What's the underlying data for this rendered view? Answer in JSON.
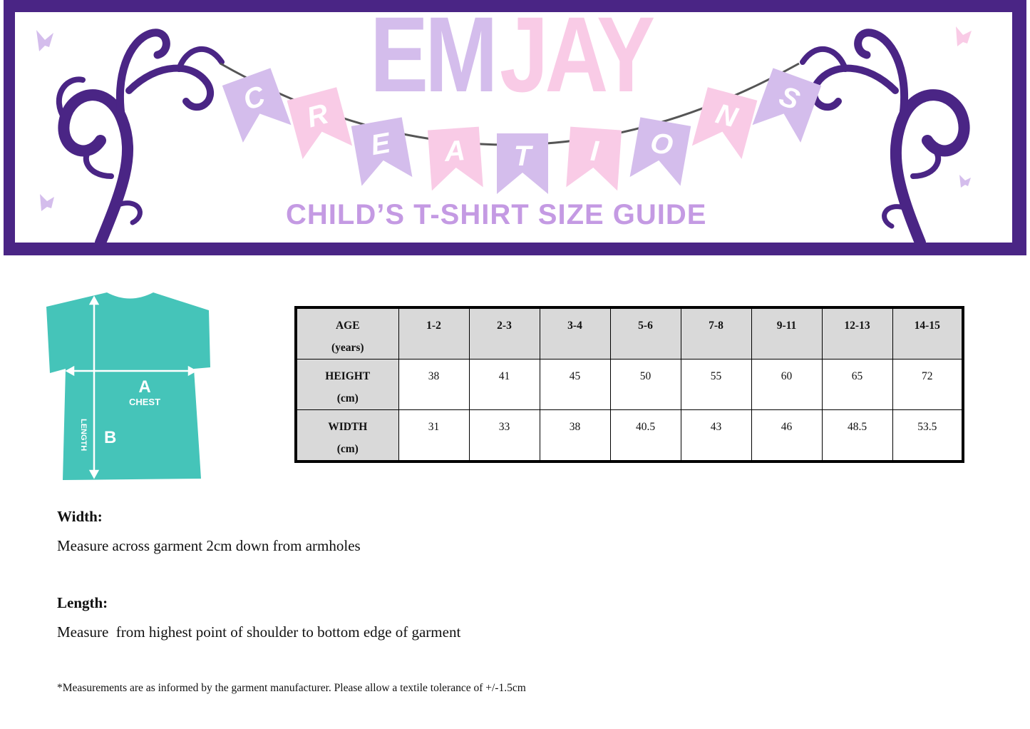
{
  "banner": {
    "brand_part1": "EM",
    "brand_part2": "JAY",
    "bunting_letters": [
      "C",
      "R",
      "E",
      "A",
      "T",
      "I",
      "O",
      "N",
      "S"
    ],
    "subtitle": "CHILD’S T-SHIRT SIZE GUIDE",
    "colors": {
      "border": "#4a2585",
      "lavender": "#d4bdec",
      "pink": "#f9cbe6",
      "subtitle": "#c49ae3"
    }
  },
  "shirt": {
    "label_a": "A",
    "label_chest": "CHEST",
    "label_b": "B",
    "label_length": "LENGTH",
    "color": "#45c4b9"
  },
  "table": {
    "rows": [
      {
        "head": [
          "AGE",
          "(years)"
        ],
        "cells": [
          "1-2",
          "2-3",
          "3-4",
          "5-6",
          "7-8",
          "9-11",
          "12-13",
          "14-15"
        ]
      },
      {
        "head": [
          "HEIGHT",
          "(cm)"
        ],
        "cells": [
          "38",
          "41",
          "45",
          "50",
          "55",
          "60",
          "65",
          "72"
        ]
      },
      {
        "head": [
          "WIDTH",
          "(cm)"
        ],
        "cells": [
          "31",
          "33",
          "38",
          "40.5",
          "43",
          "46",
          "48.5",
          "53.5"
        ]
      }
    ]
  },
  "notes": {
    "width_heading": "Width:",
    "width_text": "Measure across garment 2cm down from armholes",
    "length_heading": "Length:",
    "length_text": "Measure  from highest point of shoulder to bottom edge of garment",
    "footnote": "*Measurements are as informed by the garment manufacturer. Please allow a textile tolerance of +/-1.5cm"
  }
}
